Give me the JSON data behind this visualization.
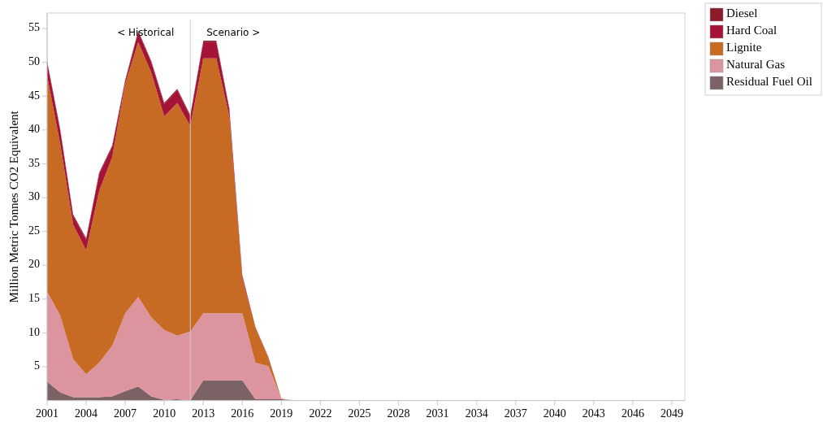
{
  "chart_data": {
    "type": "area",
    "stacked": true,
    "ylabel": "Million Metric Tonnes CO2 Equivalent",
    "x": [
      2001,
      2002,
      2003,
      2004,
      2005,
      2006,
      2007,
      2008,
      2009,
      2010,
      2011,
      2012,
      2013,
      2014,
      2015,
      2016,
      2017,
      2018,
      2019,
      2020,
      2021,
      2022,
      2023,
      2024,
      2025,
      2026,
      2027,
      2028,
      2029,
      2030,
      2031,
      2032,
      2033,
      2034,
      2035,
      2036,
      2037,
      2038,
      2039,
      2040,
      2041,
      2042,
      2043,
      2044,
      2045,
      2046,
      2047,
      2048,
      2049,
      2050
    ],
    "series": [
      {
        "name": "Residual Fuel Oil",
        "color": "#7b6265",
        "values": [
          2.8,
          1.2,
          0.5,
          0.5,
          0.5,
          0.6,
          1.4,
          2.1,
          0.6,
          0.1,
          0.2,
          0,
          3,
          3,
          3,
          3,
          0.2,
          0.2,
          0.2,
          0,
          0,
          0,
          0,
          0,
          0,
          0,
          0,
          0,
          0,
          0,
          0,
          0,
          0,
          0,
          0,
          0,
          0,
          0,
          0,
          0,
          0,
          0,
          0,
          0,
          0,
          0,
          0,
          0,
          0,
          0
        ]
      },
      {
        "name": "Natural Gas",
        "color": "#dc949f",
        "values": [
          13.3,
          11.4,
          5.6,
          3.4,
          5.1,
          7.5,
          11.5,
          13.2,
          11.7,
          10.3,
          9.4,
          10.2,
          9.9,
          9.9,
          9.9,
          9.9,
          5.4,
          4.9,
          0.1,
          0,
          0,
          0,
          0,
          0,
          0,
          0,
          0,
          0,
          0,
          0,
          0,
          0,
          0,
          0,
          0,
          0,
          0,
          0,
          0,
          0,
          0,
          0,
          0,
          0,
          0,
          0,
          0,
          0,
          0,
          0
        ]
      },
      {
        "name": "Lignite",
        "color": "#c66a24",
        "values": [
          31.9,
          25.4,
          19.9,
          18.3,
          25.4,
          27.9,
          33.9,
          37.7,
          36.2,
          31.6,
          34.4,
          30.4,
          37.7,
          37.7,
          29.1,
          5.1,
          5.2,
          1.2,
          0,
          0,
          0,
          0,
          0,
          0,
          0,
          0,
          0,
          0,
          0,
          0,
          0,
          0,
          0,
          0,
          0,
          0,
          0,
          0,
          0,
          0,
          0,
          0,
          0,
          0,
          0,
          0,
          0,
          0,
          0,
          0
        ]
      },
      {
        "name": "Hard Coal",
        "color": "#a51437",
        "values": [
          2,
          2,
          1.3,
          1.6,
          2.5,
          1.5,
          0.4,
          1.5,
          1.5,
          1.8,
          1.9,
          1.4,
          2.4,
          2.4,
          1,
          0.3,
          0.1,
          0.1,
          0,
          0,
          0,
          0,
          0,
          0,
          0,
          0,
          0,
          0,
          0,
          0,
          0,
          0,
          0,
          0,
          0,
          0,
          0,
          0,
          0,
          0,
          0,
          0,
          0,
          0,
          0,
          0,
          0,
          0,
          0,
          0
        ]
      },
      {
        "name": "Diesel",
        "color": "#8b1a2b",
        "values": [
          0.2,
          0.2,
          0.2,
          0.2,
          0.2,
          0.2,
          0.2,
          0.2,
          0.2,
          0.2,
          0.2,
          0.2,
          0.2,
          0.2,
          0.2,
          0.2,
          0,
          0,
          0,
          0,
          0,
          0,
          0,
          0,
          0,
          0,
          0,
          0,
          0,
          0,
          0,
          0,
          0,
          0,
          0,
          0,
          0,
          0,
          0,
          0,
          0,
          0,
          0,
          0,
          0,
          0,
          0,
          0,
          0,
          0
        ]
      }
    ],
    "xlim": [
      2001,
      2050
    ],
    "xticks": [
      2001,
      2004,
      2007,
      2010,
      2013,
      2016,
      2019,
      2022,
      2025,
      2028,
      2031,
      2034,
      2037,
      2040,
      2043,
      2046,
      2049
    ],
    "ylim": [
      0,
      57.3
    ],
    "yticks": [
      5,
      10,
      15,
      20,
      25,
      30,
      35,
      40,
      45,
      50,
      55
    ],
    "ref_lines": [
      {
        "axis": "x",
        "value": 2012,
        "color": "#cccccc"
      }
    ],
    "annotations": [
      "< Historical",
      "Scenario >"
    ],
    "grid": false,
    "legend": "top right"
  }
}
